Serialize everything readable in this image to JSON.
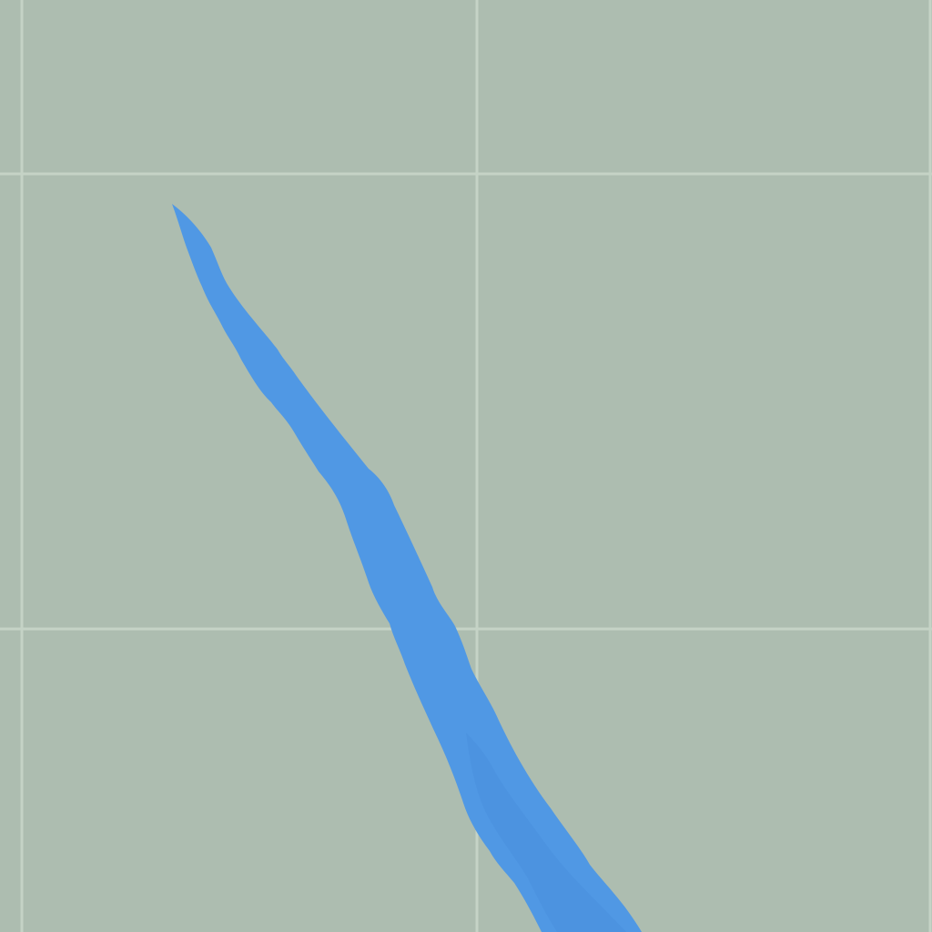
{
  "map": {
    "colors": {
      "land": "#adbdb0",
      "water": "#5098e4",
      "water_overlap": "#4a90dd",
      "gridline": "#c5d3c6"
    },
    "features": [
      {
        "name": "river",
        "kind": "water"
      }
    ]
  }
}
